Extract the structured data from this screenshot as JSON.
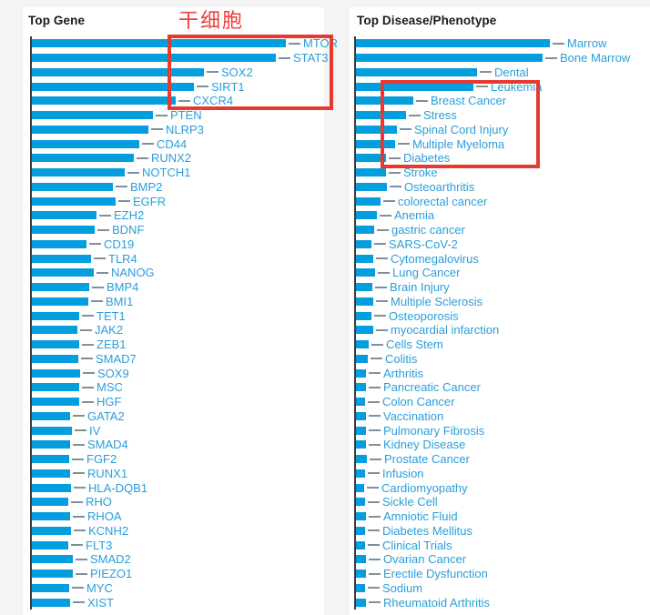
{
  "page": {
    "background_color": "#f4f4f4",
    "panel_color": "#ffffff"
  },
  "annotations": {
    "stem_cell_label": "干细胞",
    "text_color": "#f23d3d",
    "box_color": "#e8392f"
  },
  "chart_data": [
    {
      "type": "bar",
      "orientation": "horizontal",
      "title": "Top Gene",
      "title_color": "#1a1a1a",
      "bar_color": "#049edf",
      "label_color": "#2b9ed9",
      "connector_color": "#7f909c",
      "axis_color": "#3c3c3c",
      "value_axis": "hidden — no numeric axis shown; values are estimated bar lengths in px",
      "legend": "none",
      "grid": "off",
      "categories": [
        "MTOR",
        "STAT3",
        "SOX2",
        "SIRT1",
        "CXCR4",
        "PTEN",
        "NLRP3",
        "CD44",
        "RUNX2",
        "NOTCH1",
        "BMP2",
        "EGFR",
        "EZH2",
        "BDNF",
        "CD19",
        "TLR4",
        "NANOG",
        "BMP4",
        "BMI1",
        "TET1",
        "JAK2",
        "ZEB1",
        "SMAD7",
        "SOX9",
        "MSC",
        "HGF",
        "GATA2",
        "IV",
        "SMAD4",
        "FGF2",
        "RUNX1",
        "HLA-DQB1",
        "RHO",
        "RHOA",
        "KCNH2",
        "FLT3",
        "SMAD2",
        "PIEZO1",
        "MYC",
        "XIST"
      ],
      "values": [
        279,
        268,
        189,
        178,
        158,
        133,
        128,
        118,
        112,
        102,
        89,
        92,
        71,
        69,
        60,
        65,
        68,
        63,
        62,
        52,
        50,
        52,
        51,
        53,
        52,
        52,
        42,
        44,
        42,
        41,
        42,
        43,
        40,
        42,
        43,
        40,
        45,
        45,
        41,
        42
      ]
    },
    {
      "type": "bar",
      "orientation": "horizontal",
      "title": "Top Disease/Phenotype",
      "title_color": "#1a1a1a",
      "bar_color": "#049edf",
      "label_color": "#2b9ed9",
      "connector_color": "#7f909c",
      "axis_color": "#3c3c3c",
      "value_axis": "hidden — no numeric axis shown; values are estimated bar lengths in px",
      "legend": "none",
      "grid": "off",
      "categories": [
        "Marrow",
        "Bone Marrow",
        "Dental",
        "Leukemia",
        "Breast Cancer",
        "Stress",
        "Spinal Cord Injury",
        "Multiple Myeloma",
        "Diabetes",
        "Stroke",
        "Osteoarthritis",
        "colorectal cancer",
        "Anemia",
        "gastric cancer",
        "SARS-CoV-2",
        "Cytomegalovirus",
        "Lung Cancer",
        "Brain Injury",
        "Multiple Sclerosis",
        "Osteoporosis",
        "myocardial infarction",
        "Cells Stem",
        "Colitis",
        "Arthritis",
        "Pancreatic Cancer",
        "Colon Cancer",
        "Vaccination",
        "Pulmonary Fibrosis",
        "Kidney Disease",
        "Prostate Cancer",
        "Infusion",
        "Cardiomyopathy",
        "Sickle Cell",
        "Amniotic Fluid",
        "Diabetes Mellitus",
        "Clinical Trials",
        "Ovarian Cancer",
        "Erectile Dysfunction",
        "Sodium",
        "Rheumatoid Arthritis"
      ],
      "values": [
        213,
        205,
        133,
        129,
        63,
        55,
        45,
        43,
        33,
        33,
        34,
        27,
        23,
        20,
        17,
        19,
        21,
        18,
        19,
        17,
        19,
        14,
        13,
        11,
        11,
        10,
        11,
        11,
        11,
        12,
        10,
        9,
        10,
        11,
        10,
        10,
        11,
        11,
        10,
        11
      ]
    }
  ]
}
